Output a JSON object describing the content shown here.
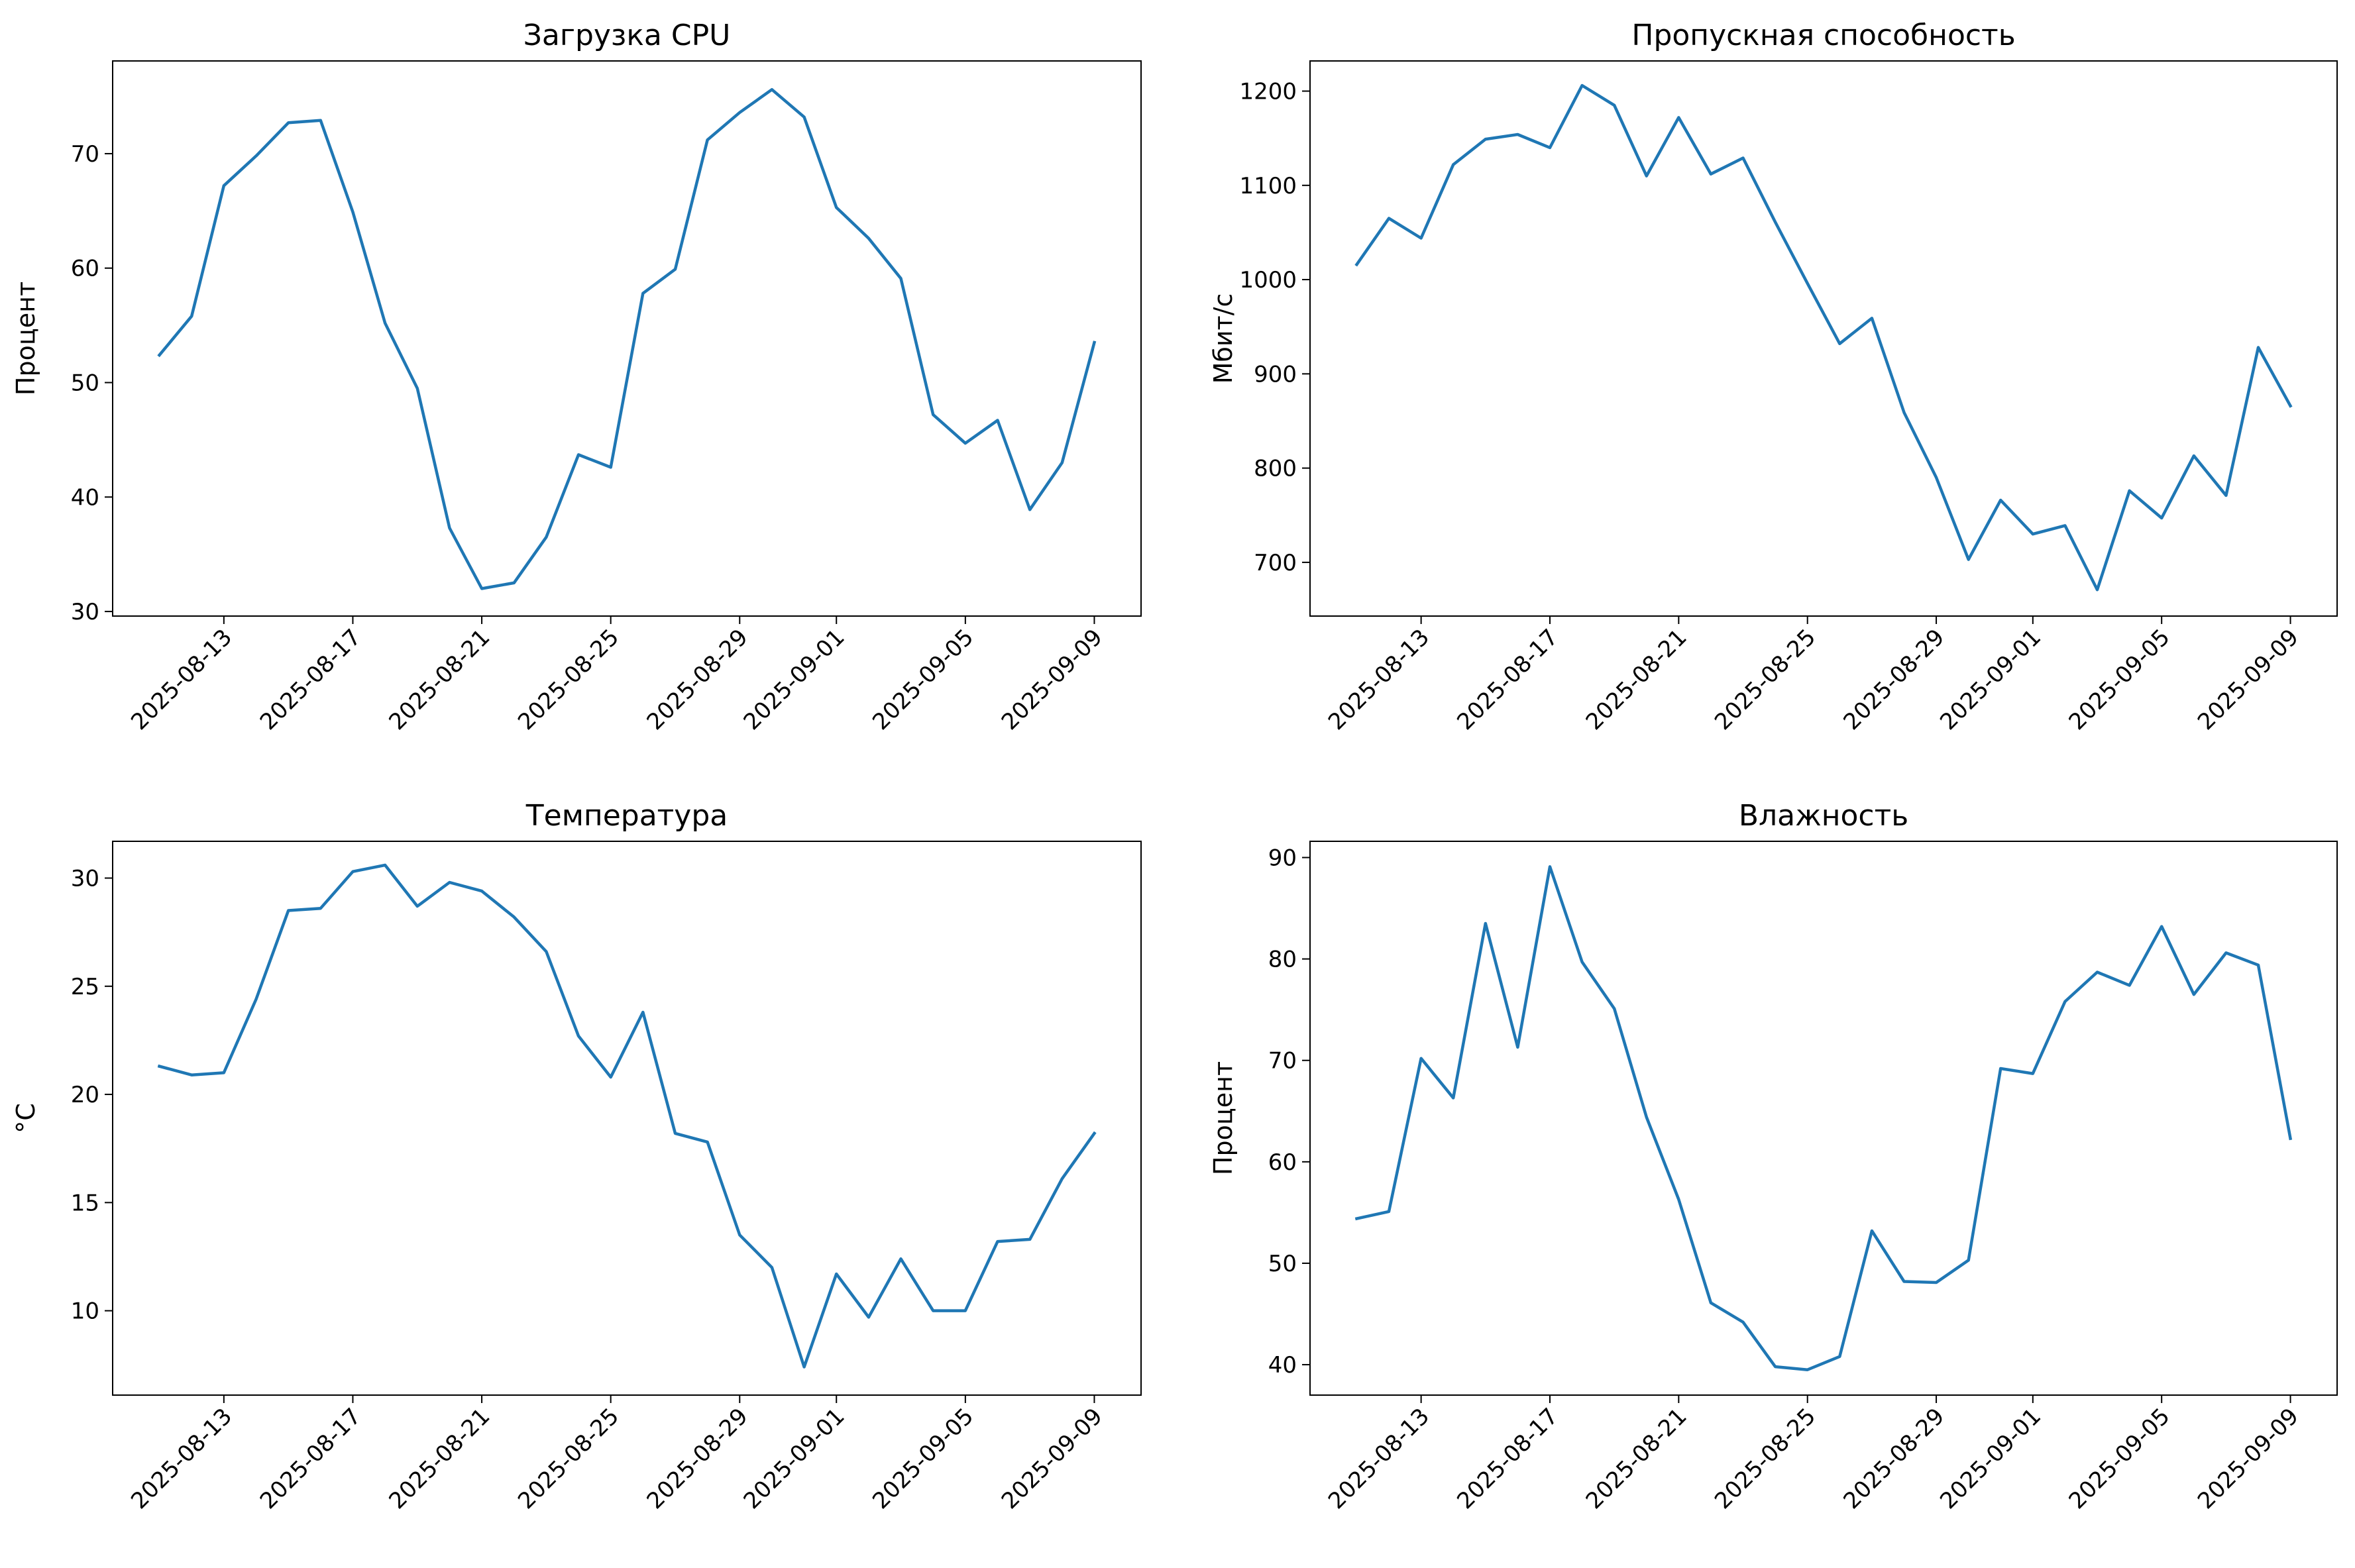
{
  "chart_data": [
    {
      "type": "line",
      "title": "Загрузка CPU",
      "xlabel": "",
      "ylabel": "Процент",
      "x_start": "2025-08-11",
      "x_tick_labels": [
        "2025-08-13",
        "2025-08-17",
        "2025-08-21",
        "2025-08-25",
        "2025-08-29",
        "2025-09-01",
        "2025-09-05",
        "2025-09-09"
      ],
      "y_ticks": [
        30,
        40,
        50,
        60,
        70
      ],
      "ylim": [
        29.6,
        78.1
      ],
      "grid": false,
      "color": "#1f77b4",
      "values": [
        52.4,
        55.8,
        67.2,
        69.8,
        72.7,
        72.9,
        64.9,
        55.2,
        49.5,
        37.3,
        32.0,
        32.5,
        36.5,
        43.7,
        42.6,
        57.8,
        59.9,
        71.2,
        73.6,
        75.6,
        73.2,
        65.3,
        62.6,
        59.1,
        47.2,
        44.7,
        46.7,
        38.9,
        43.0,
        53.5
      ]
    },
    {
      "type": "line",
      "title": "Пропускная способность",
      "xlabel": "",
      "ylabel": "Мбит/с",
      "x_start": "2025-08-11",
      "x_tick_labels": [
        "2025-08-13",
        "2025-08-17",
        "2025-08-21",
        "2025-08-25",
        "2025-08-29",
        "2025-09-01",
        "2025-09-05",
        "2025-09-09"
      ],
      "y_ticks": [
        700,
        800,
        900,
        1000,
        1100,
        1200
      ],
      "ylim": [
        643,
        1232
      ],
      "grid": false,
      "color": "#1f77b4",
      "values": [
        1016,
        1065,
        1044,
        1122,
        1149,
        1154,
        1140,
        1206,
        1185,
        1110,
        1172,
        1112,
        1129,
        1061,
        996,
        932,
        959,
        859,
        790,
        703,
        766,
        730,
        739,
        671,
        776,
        747,
        813,
        771,
        928,
        866
      ]
    },
    {
      "type": "line",
      "title": "Температура",
      "xlabel": "",
      "ylabel": "°C",
      "x_start": "2025-08-11",
      "x_tick_labels": [
        "2025-08-13",
        "2025-08-17",
        "2025-08-21",
        "2025-08-25",
        "2025-08-29",
        "2025-09-01",
        "2025-09-05",
        "2025-09-09"
      ],
      "y_ticks": [
        10,
        15,
        20,
        25,
        30
      ],
      "ylim": [
        6.1,
        31.7
      ],
      "grid": false,
      "color": "#1f77b4",
      "values": [
        21.3,
        20.9,
        21.0,
        24.4,
        28.5,
        28.6,
        30.3,
        30.6,
        28.7,
        29.8,
        29.4,
        28.2,
        26.6,
        22.7,
        20.8,
        23.8,
        18.2,
        17.8,
        13.5,
        12.0,
        7.4,
        11.7,
        9.7,
        12.4,
        10.0,
        10.0,
        13.2,
        13.3,
        16.1,
        18.2
      ]
    },
    {
      "type": "line",
      "title": "Влажность",
      "xlabel": "",
      "ylabel": "Процент",
      "x_start": "2025-08-11",
      "x_tick_labels": [
        "2025-08-13",
        "2025-08-17",
        "2025-08-21",
        "2025-08-25",
        "2025-08-29",
        "2025-09-01",
        "2025-09-05",
        "2025-09-09"
      ],
      "y_ticks": [
        40,
        50,
        60,
        70,
        80,
        90
      ],
      "ylim": [
        37.0,
        91.6
      ],
      "grid": false,
      "color": "#1f77b4",
      "values": [
        54.4,
        55.1,
        70.2,
        66.3,
        83.5,
        71.3,
        89.1,
        79.7,
        75.1,
        64.4,
        56.3,
        46.1,
        44.2,
        39.8,
        39.5,
        40.8,
        53.2,
        48.2,
        48.1,
        50.3,
        69.2,
        68.7,
        75.8,
        78.7,
        77.4,
        83.2,
        76.5,
        80.6,
        79.4,
        62.3
      ]
    }
  ]
}
